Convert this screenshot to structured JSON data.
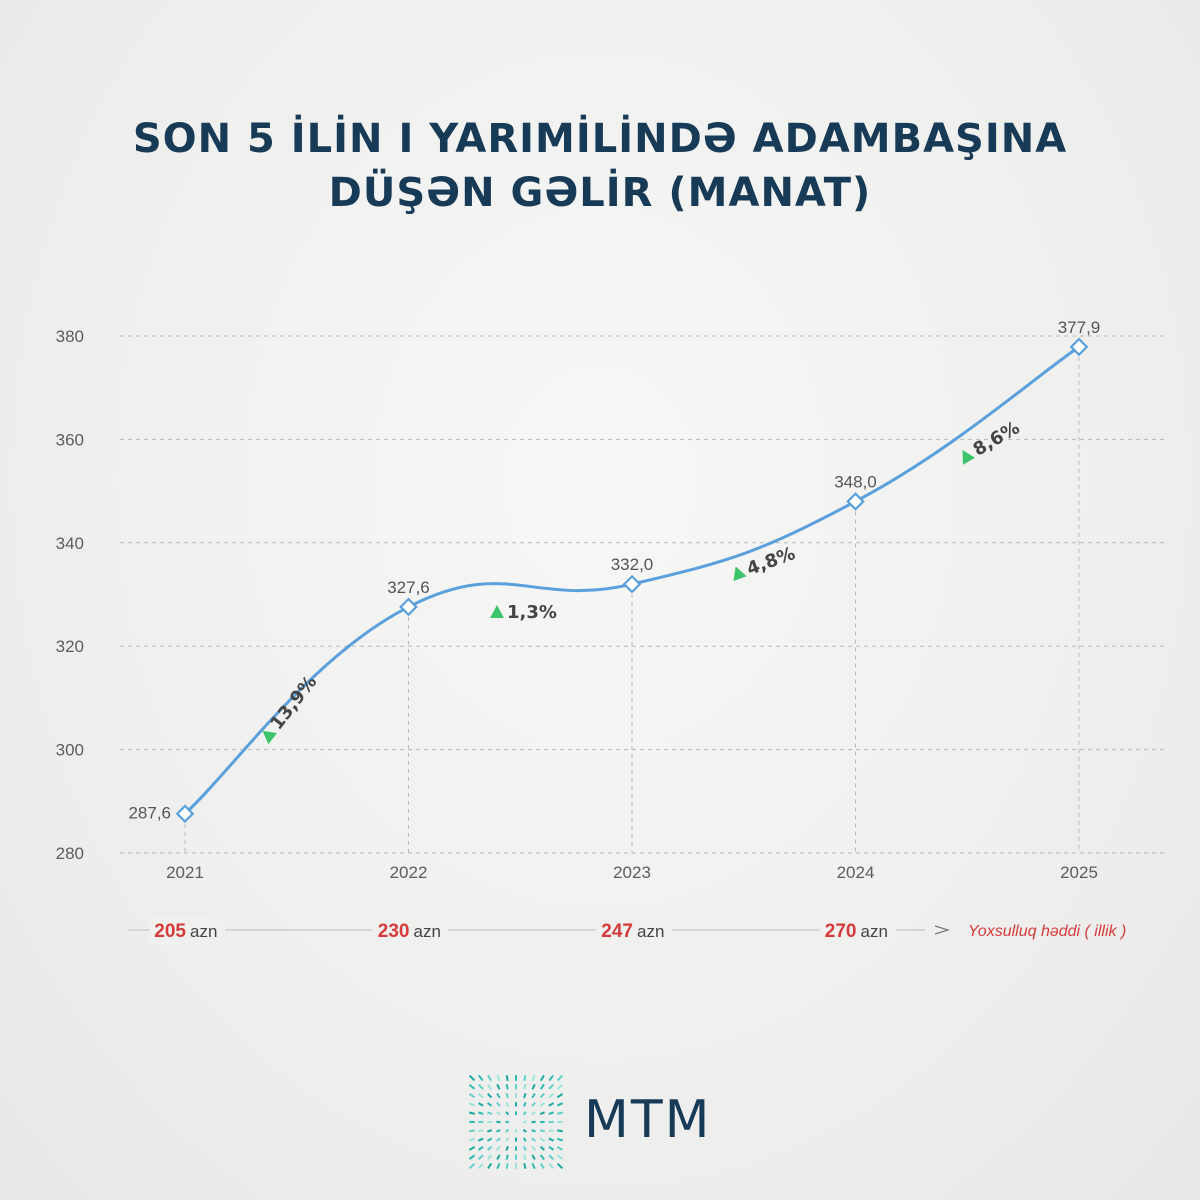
{
  "title": {
    "line1": "SON 5 İLİN I YARIMİLİNDƏ ADAMBAŞINA",
    "line2": "DÜŞƏN GƏLİR (MANAT)"
  },
  "chart_data": {
    "type": "line",
    "title": "SON 5 İLİN I YARIMİLİNDƏ ADAMBAŞINA DÜŞƏN GƏLİR (MANAT)",
    "x": [
      "2021",
      "2022",
      "2023",
      "2024",
      "2025"
    ],
    "series": [
      {
        "values": [
          287.6,
          327.6,
          332.0,
          348.0,
          377.9
        ],
        "value_labels": [
          "287,6",
          "327,6",
          "332,0",
          "348,0",
          "377,9"
        ],
        "color": "#5aa0dc"
      }
    ],
    "growth_labels": [
      "13,9%",
      "1,3%",
      "4,8%",
      "8,6%"
    ],
    "y_ticks": [
      280,
      300,
      320,
      340,
      360,
      380
    ],
    "ylim": [
      280,
      380
    ],
    "grid": true,
    "poverty_line": {
      "values": [
        "205",
        "230",
        "247",
        "270"
      ],
      "unit": "azn",
      "note": "Yoxsulluq həddi ( illik )"
    }
  },
  "colors": {
    "title": "#173a57",
    "line": "#5aa0dc",
    "growth_arrow": "#3cc46a",
    "poverty_value": "#d63b3b"
  },
  "logo": {
    "text": "MTM"
  }
}
